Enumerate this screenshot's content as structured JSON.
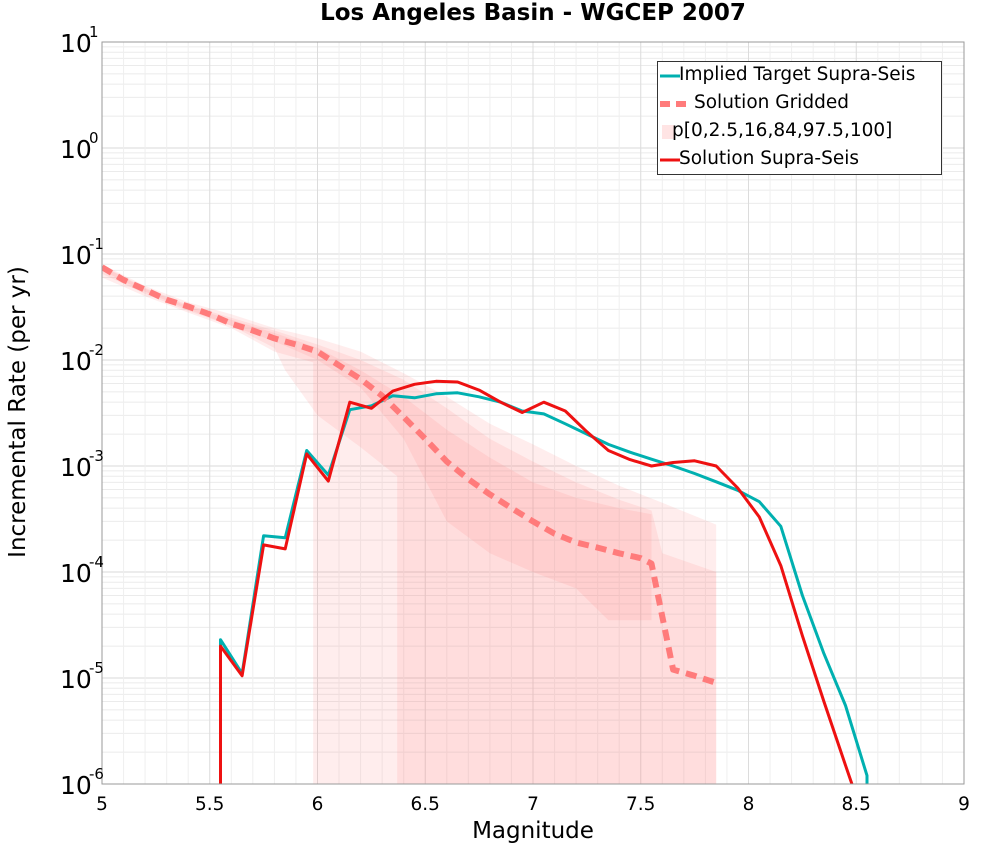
{
  "chart_data": {
    "type": "line",
    "title": "Los Angeles Basin - WGCEP 2007",
    "xlabel": "Magnitude",
    "ylabel": "Incremental Rate (per yr)",
    "xlim": [
      5,
      9
    ],
    "ylim": [
      1e-06,
      10
    ],
    "y_scale": "log",
    "grid": true,
    "legend_position": "top-right",
    "x_ticks": [
      5,
      5.5,
      6,
      6.5,
      7,
      7.5,
      8,
      8.5,
      9
    ],
    "x_tick_labels": [
      "5",
      "5.5",
      "6",
      "6.5",
      "7",
      "7.5",
      "8",
      "8.5",
      "9"
    ],
    "y_ticks": [
      {
        "value": 1e-06,
        "base": "10",
        "exp": "-6"
      },
      {
        "value": 1e-05,
        "base": "10",
        "exp": "-5"
      },
      {
        "value": 0.0001,
        "base": "10",
        "exp": "-4"
      },
      {
        "value": 0.001,
        "base": "10",
        "exp": "-3"
      },
      {
        "value": 0.01,
        "base": "10",
        "exp": "-2"
      },
      {
        "value": 0.1,
        "base": "10",
        "exp": "-1"
      },
      {
        "value": 1,
        "base": "10",
        "exp": "0"
      },
      {
        "value": 10,
        "base": "10",
        "exp": "1"
      }
    ],
    "bands": {
      "color": "#ff8080",
      "outer_min_max": {
        "upper": [
          [
            5.0,
            0.08
          ],
          [
            5.2,
            0.05
          ],
          [
            5.4,
            0.035
          ],
          [
            5.6,
            0.027
          ],
          [
            5.8,
            0.02
          ],
          [
            6.0,
            0.016
          ],
          [
            6.2,
            0.012
          ],
          [
            6.4,
            0.0075
          ],
          [
            6.6,
            0.0045
          ],
          [
            6.8,
            0.0025
          ],
          [
            7.0,
            0.0016
          ],
          [
            7.2,
            0.001
          ],
          [
            7.4,
            0.00065
          ],
          [
            7.6,
            0.00045
          ],
          [
            7.85,
            0.00028
          ]
        ],
        "lower": [
          [
            5.0,
            0.06
          ],
          [
            5.2,
            0.04
          ],
          [
            5.4,
            0.028
          ],
          [
            5.6,
            0.02
          ],
          [
            5.8,
            0.012
          ],
          [
            5.98,
            0.0095
          ],
          [
            5.98,
            1e-06
          ],
          [
            7.85,
            1e-06
          ]
        ]
      },
      "p2_5_97_5": {
        "upper": [
          [
            5.0,
            0.078
          ],
          [
            5.2,
            0.048
          ],
          [
            5.4,
            0.033
          ],
          [
            5.6,
            0.025
          ],
          [
            5.8,
            0.019
          ],
          [
            6.0,
            0.014
          ],
          [
            6.2,
            0.01
          ],
          [
            6.4,
            0.0065
          ],
          [
            6.6,
            0.0035
          ],
          [
            6.8,
            0.0018
          ],
          [
            7.0,
            0.0011
          ],
          [
            7.2,
            0.0007
          ],
          [
            7.4,
            0.00048
          ],
          [
            7.55,
            0.00038
          ],
          [
            7.6,
            0.00015
          ],
          [
            7.85,
            0.0001
          ]
        ],
        "lower": [
          [
            5.0,
            0.065
          ],
          [
            5.2,
            0.042
          ],
          [
            5.4,
            0.029
          ],
          [
            5.6,
            0.021
          ],
          [
            5.8,
            0.013
          ],
          [
            5.85,
            0.008
          ],
          [
            6.0,
            0.003
          ],
          [
            6.2,
            0.0015
          ],
          [
            6.37,
            0.0008
          ],
          [
            6.37,
            1e-06
          ],
          [
            7.85,
            1e-06
          ]
        ]
      },
      "p16_84": {
        "upper": [
          [
            5.0,
            0.077
          ],
          [
            5.2,
            0.047
          ],
          [
            5.4,
            0.032
          ],
          [
            5.6,
            0.024
          ],
          [
            5.8,
            0.018
          ],
          [
            6.0,
            0.013
          ],
          [
            6.2,
            0.008
          ],
          [
            6.4,
            0.0045
          ],
          [
            6.6,
            0.0022
          ],
          [
            6.8,
            0.0012
          ],
          [
            7.0,
            0.0007
          ],
          [
            7.2,
            0.0005
          ],
          [
            7.4,
            0.0004
          ],
          [
            7.55,
            0.00035
          ]
        ],
        "lower": [
          [
            5.0,
            0.07
          ],
          [
            5.2,
            0.044
          ],
          [
            5.4,
            0.03
          ],
          [
            5.6,
            0.021
          ],
          [
            5.8,
            0.015
          ],
          [
            6.0,
            0.01
          ],
          [
            6.2,
            0.0055
          ],
          [
            6.4,
            0.0018
          ],
          [
            6.6,
            0.0003
          ],
          [
            6.8,
            0.00015
          ],
          [
            7.0,
            0.0001
          ],
          [
            7.2,
            7e-05
          ],
          [
            7.35,
            3.5e-05
          ],
          [
            7.55,
            3.5e-05
          ]
        ]
      }
    },
    "series": [
      {
        "name": "Implied Target Supra-Seis",
        "color": "#00b0b0",
        "style": "solid",
        "points": [
          [
            5.55,
            1e-06
          ],
          [
            5.55,
            2.3e-05
          ],
          [
            5.65,
            1.1e-05
          ],
          [
            5.75,
            0.00022
          ],
          [
            5.85,
            0.00021
          ],
          [
            5.95,
            0.0014
          ],
          [
            6.05,
            0.00082
          ],
          [
            6.15,
            0.0034
          ],
          [
            6.25,
            0.0037
          ],
          [
            6.35,
            0.0046
          ],
          [
            6.45,
            0.0044
          ],
          [
            6.55,
            0.0048
          ],
          [
            6.65,
            0.0049
          ],
          [
            6.75,
            0.0045
          ],
          [
            6.85,
            0.004
          ],
          [
            6.95,
            0.0033
          ],
          [
            7.05,
            0.0031
          ],
          [
            7.15,
            0.0025
          ],
          [
            7.25,
            0.002
          ],
          [
            7.35,
            0.0016
          ],
          [
            7.45,
            0.00135
          ],
          [
            7.55,
            0.00116
          ],
          [
            7.65,
            0.001
          ],
          [
            7.75,
            0.00085
          ],
          [
            7.85,
            0.00071
          ],
          [
            7.95,
            0.00059
          ],
          [
            8.05,
            0.00046
          ],
          [
            8.15,
            0.00027
          ],
          [
            8.25,
            6e-05
          ],
          [
            8.35,
            1.7e-05
          ],
          [
            8.45,
            5.5e-06
          ],
          [
            8.55,
            1.2e-06
          ],
          [
            8.55,
            1e-06
          ]
        ]
      },
      {
        "name": "Solution Gridded",
        "color": "#ff7b7b",
        "style": "dashed",
        "points": [
          [
            5.0,
            0.075
          ],
          [
            5.1,
            0.057
          ],
          [
            5.2,
            0.046
          ],
          [
            5.3,
            0.037
          ],
          [
            5.4,
            0.032
          ],
          [
            5.5,
            0.027
          ],
          [
            5.6,
            0.022
          ],
          [
            5.7,
            0.019
          ],
          [
            5.8,
            0.016
          ],
          [
            5.9,
            0.014
          ],
          [
            6.0,
            0.012
          ],
          [
            6.1,
            0.0089
          ],
          [
            6.2,
            0.0066
          ],
          [
            6.3,
            0.0046
          ],
          [
            6.4,
            0.0029
          ],
          [
            6.5,
            0.0018
          ],
          [
            6.6,
            0.0011
          ],
          [
            6.7,
            0.00075
          ],
          [
            6.8,
            0.00054
          ],
          [
            6.9,
            0.0004
          ],
          [
            7.0,
            0.0003
          ],
          [
            7.1,
            0.00023
          ],
          [
            7.2,
            0.00019
          ],
          [
            7.3,
            0.00017
          ],
          [
            7.4,
            0.00015
          ],
          [
            7.5,
            0.000135
          ],
          [
            7.55,
            0.00012
          ],
          [
            7.65,
            1.2e-05
          ],
          [
            7.75,
            1.05e-05
          ],
          [
            7.85,
            9e-06
          ]
        ]
      },
      {
        "name": "p[0,2.5,16,84,97.5,100]",
        "color": "#ffe0e0",
        "style": "band"
      },
      {
        "name": "Solution Supra-Seis",
        "color": "#ee1111",
        "style": "solid",
        "points": [
          [
            5.55,
            1e-06
          ],
          [
            5.55,
            2e-05
          ],
          [
            5.65,
            1.05e-05
          ],
          [
            5.75,
            0.00018
          ],
          [
            5.85,
            0.000165
          ],
          [
            5.95,
            0.0013
          ],
          [
            6.05,
            0.00072
          ],
          [
            6.15,
            0.004
          ],
          [
            6.25,
            0.0035
          ],
          [
            6.35,
            0.0051
          ],
          [
            6.45,
            0.0059
          ],
          [
            6.55,
            0.0063
          ],
          [
            6.65,
            0.0062
          ],
          [
            6.75,
            0.0052
          ],
          [
            6.85,
            0.004
          ],
          [
            6.95,
            0.0032
          ],
          [
            7.05,
            0.004
          ],
          [
            7.15,
            0.0033
          ],
          [
            7.25,
            0.0021
          ],
          [
            7.35,
            0.0014
          ],
          [
            7.45,
            0.00115
          ],
          [
            7.55,
            0.001
          ],
          [
            7.65,
            0.00108
          ],
          [
            7.75,
            0.00112
          ],
          [
            7.85,
            0.001
          ],
          [
            7.95,
            0.00062
          ],
          [
            8.05,
            0.00033
          ],
          [
            8.15,
            0.000115
          ],
          [
            8.25,
            2.5e-05
          ],
          [
            8.35,
            6e-06
          ],
          [
            8.45,
            1.5e-06
          ],
          [
            8.48,
            1e-06
          ]
        ]
      }
    ]
  }
}
